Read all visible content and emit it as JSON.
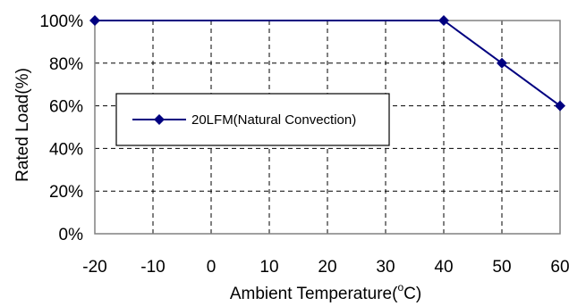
{
  "chart_data": {
    "type": "line",
    "title": "",
    "xlabel": "Ambient Temperature(°C)",
    "xlabel_parts": {
      "prefix": "Ambient Temperature(",
      "degree": "o",
      "suffix": "C)"
    },
    "ylabel": "Rated Load(%)",
    "x_ticks": [
      "-20",
      "-10",
      "0",
      "10",
      "20",
      "30",
      "40",
      "50",
      "60"
    ],
    "y_ticks": [
      "0%",
      "20%",
      "40%",
      "60%",
      "80%",
      "100%"
    ],
    "xlim": [
      -20,
      60
    ],
    "ylim": [
      0,
      100
    ],
    "grid": true,
    "legend_position": "center-left",
    "series": [
      {
        "name": "20LFM(Natural Convection)",
        "color": "#000080",
        "marker": "diamond",
        "x": [
          -20,
          40,
          50,
          60
        ],
        "y": [
          100,
          100,
          80,
          60
        ]
      }
    ]
  }
}
